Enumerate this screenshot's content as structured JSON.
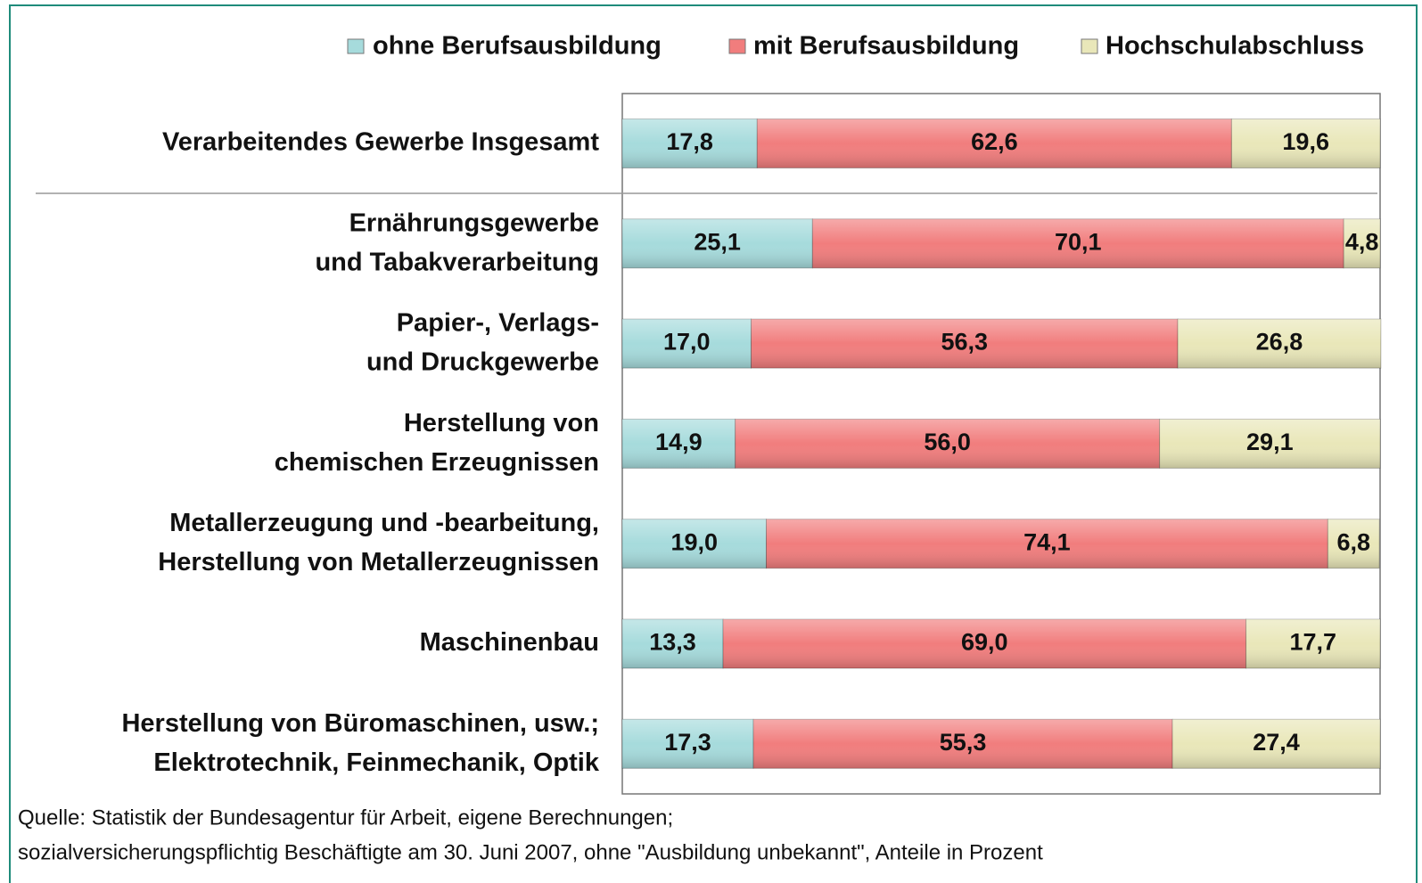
{
  "chart_data": {
    "type": "stacked-barh",
    "categories": [
      "Verarbeitendes Gewerbe Insgesamt",
      "Ernährungsgewerbe\nund Tabakverarbeitung",
      "Papier-, Verlags-\nund Druckgewerbe",
      "Herstellung von\nchemischen Erzeugnissen",
      "Metallerzeugung und -bearbeitung,\nHerstellung von Metallerzeugnissen",
      "Maschinenbau",
      "Herstellung von Büromaschinen, usw.;\nElektrotechnik, Feinmechanik, Optik"
    ],
    "series": [
      {
        "name": "ohne Berufsausbildung",
        "color": "#a6dbdc",
        "values": [
          17.8,
          25.1,
          17.0,
          14.9,
          19.0,
          13.3,
          17.3
        ],
        "value_labels": [
          "17,8",
          "25,1",
          "17,0",
          "14,9",
          "19,0",
          "13,3",
          "17,3"
        ]
      },
      {
        "name": "mit Berufsausbildung",
        "color": "#f17d7d",
        "values": [
          62.6,
          70.1,
          56.3,
          56.0,
          74.1,
          69.0,
          55.3
        ],
        "value_labels": [
          "62,6",
          "70,1",
          "56,3",
          "56,0",
          "74,1",
          "69,0",
          "55,3"
        ]
      },
      {
        "name": "Hochschulabschluss",
        "color": "#e9e7b9",
        "values": [
          19.6,
          4.8,
          26.8,
          29.1,
          6.8,
          17.7,
          27.4
        ],
        "value_labels": [
          "19,6",
          "4,8",
          "26,8",
          "29,1",
          "6,8",
          "17,7",
          "27,4"
        ]
      }
    ],
    "xlim": [
      0,
      100
    ],
    "notes": [
      "Quelle: Statistik der Bundesagentur für Arbeit, eigene Berechnungen;",
      "sozialversicherungspflichtig Beschäftigte am  30. Juni 2007, ohne \"Ausbildung unbekannt\", Anteile in Prozent"
    ]
  }
}
